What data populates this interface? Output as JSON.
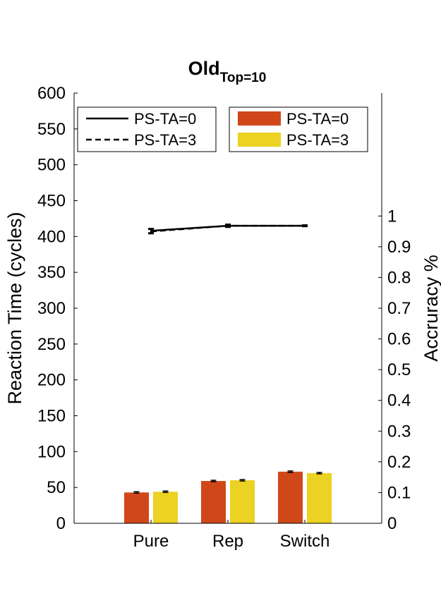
{
  "chart_data": {
    "type": "bar",
    "title": "Old",
    "title_subscript": "Top=10",
    "categories": [
      "Pure",
      "Rep",
      "Switch"
    ],
    "ylabel": "Reaction Time (cycles)",
    "ylim": [
      0,
      600
    ],
    "yticks": [
      0,
      50,
      100,
      150,
      200,
      250,
      300,
      350,
      400,
      450,
      500,
      550,
      600
    ],
    "y2label": "Accruracy %",
    "y2lim": [
      0,
      1.4
    ],
    "y2ticks": [
      "0",
      "0.1",
      "0.2",
      "0.3",
      "0.4",
      "0.5",
      "0.6",
      "0.7",
      "0.8",
      "0.9",
      "1"
    ],
    "grid": false,
    "legend_lines": {
      "placement": "top-left",
      "entries": [
        {
          "label": "PS-TA=0",
          "style": "solid"
        },
        {
          "label": "PS-TA=3",
          "style": "dashed"
        }
      ]
    },
    "legend_bars": {
      "placement": "top-center",
      "entries": [
        {
          "label": "PS-TA=0",
          "color": "#D95319"
        },
        {
          "label": "PS-TA=3",
          "color": "#EDB120"
        }
      ]
    },
    "bar_series": [
      {
        "name": "PS-TA=0",
        "color": "#D0481A",
        "values": [
          43,
          59,
          72
        ],
        "errors": [
          1,
          1,
          1
        ]
      },
      {
        "name": "PS-TA=3",
        "color": "#ECD222",
        "values": [
          44,
          60,
          70
        ],
        "errors": [
          1,
          1,
          1
        ]
      }
    ],
    "line_series": [
      {
        "name": "PS-TA=0",
        "style": "solid",
        "axis": "left",
        "values": [
          408,
          415,
          415
        ],
        "errors": [
          3,
          2,
          1
        ]
      },
      {
        "name": "PS-TA=3",
        "style": "dashed",
        "axis": "left",
        "values": [
          407,
          415,
          415
        ],
        "errors": [
          3,
          2,
          1
        ]
      }
    ]
  }
}
